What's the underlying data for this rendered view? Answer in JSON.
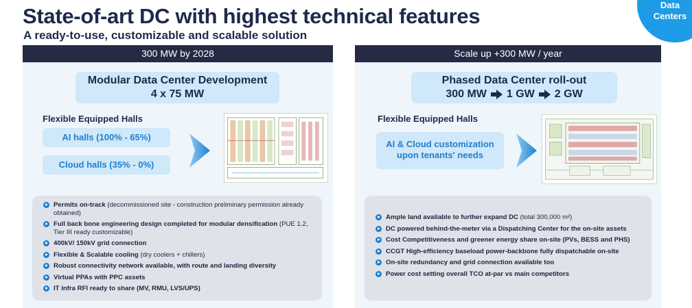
{
  "header": {
    "title": "State-of-art DC with highest technical features",
    "subtitle": "A ready-to-use, customizable and scalable solution",
    "badge_line1": "Data",
    "badge_line2": "Centers"
  },
  "left": {
    "header": "300 MW by 2028",
    "box_title": "Modular Data Center Development",
    "box_sub": "4 x 75 MW",
    "halls_label": "Flexible Equipped Halls",
    "pill_ai": "AI halls (100% - 65%)",
    "pill_cloud": "Cloud halls (35% - 0%)",
    "bullets": [
      {
        "bold": "Permits on-track",
        "normal": " (decommissioned site - construction preliminary permission already obtained)"
      },
      {
        "bold": "Full back bone engineering design completed for modular densification",
        "normal": " (PUE 1.2, Tier III ready customizable)"
      },
      {
        "bold": "400kV/ 150kV grid connection",
        "normal": ""
      },
      {
        "bold": "Flexible & Scalable cooling",
        "normal": " (dry coolers + chillers)"
      },
      {
        "bold": "Robust connectivity network available, with route and landing diversity",
        "normal": ""
      },
      {
        "bold": "Virtual PPAs with PPC assets",
        "normal": ""
      },
      {
        "bold": "IT infra RFI ready to share (MV, RMU, LVS/UPS)",
        "normal": ""
      }
    ]
  },
  "right": {
    "header": "Scale up +300 MW / year",
    "box_title": "Phased Data Center roll-out",
    "steps": [
      "300 MW",
      "1 GW",
      "2 GW"
    ],
    "halls_label": "Flexible Equipped Halls",
    "pill_line1": "AI & Cloud customization",
    "pill_line2": "upon tenants' needs",
    "bullets": [
      {
        "bold": "Ample land available to further expand DC",
        "normal": " (total 300,000 m²)"
      },
      {
        "bold": "DC powered behind-the-meter via a Dispatching Center for the on-site assets",
        "normal": ""
      },
      {
        "bold": "Cost Competitiveness and greener energy share on-site (PVs, BESS and PHS)",
        "normal": ""
      },
      {
        "bold": "CCGT High-efficiency baseload power-backbone fully dispatchable on-site",
        "normal": ""
      },
      {
        "bold": "On-site redundancy and grid connection available too",
        "normal": ""
      },
      {
        "bold": "Power cost setting overall TCO at-par vs main competitors",
        "normal": ""
      }
    ]
  },
  "colors": {
    "navy": "#262a44",
    "accent": "#1e9be6",
    "pill_bg": "#cfe8fa",
    "pill_text": "#1e7fd0",
    "bullet_bg": "#dfe2e8"
  }
}
